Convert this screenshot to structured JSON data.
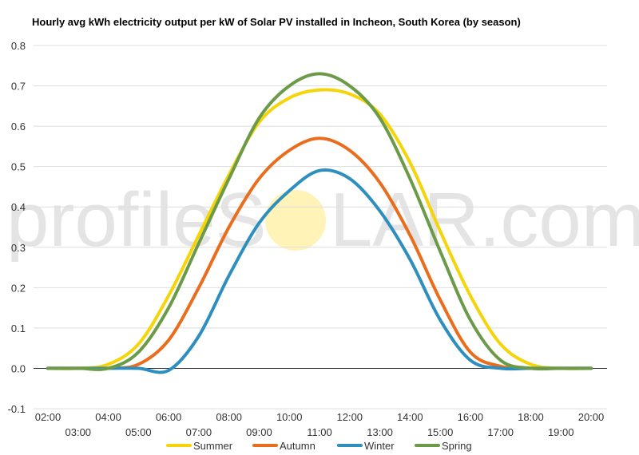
{
  "chart_data": {
    "type": "line",
    "title": "Hourly avg kWh electricity output per kW of Solar PV installed in Incheon, South Korea (by season)",
    "x": [
      "02:00",
      "03:00",
      "04:00",
      "05:00",
      "06:00",
      "07:00",
      "08:00",
      "09:00",
      "10:00",
      "11:00",
      "12:00",
      "13:00",
      "14:00",
      "15:00",
      "16:00",
      "17:00",
      "18:00",
      "19:00",
      "20:00"
    ],
    "ylim": [
      -0.1,
      0.8
    ],
    "yticks": [
      "0.8",
      "0.7",
      "0.6",
      "0.5",
      "0.4",
      "0.3",
      "0.2",
      "0.1",
      "0.0",
      "-0.1"
    ],
    "grid": true,
    "legend_position": "bottom",
    "series": [
      {
        "name": "Summer",
        "color": "#f6d40a",
        "values": [
          0,
          0,
          0.01,
          0.06,
          0.18,
          0.33,
          0.48,
          0.61,
          0.67,
          0.69,
          0.68,
          0.63,
          0.51,
          0.34,
          0.18,
          0.06,
          0.01,
          0,
          0
        ]
      },
      {
        "name": "Autumn",
        "color": "#ea6d1e",
        "values": [
          0,
          0,
          0,
          0.01,
          0.07,
          0.2,
          0.35,
          0.47,
          0.54,
          0.57,
          0.54,
          0.46,
          0.33,
          0.17,
          0.04,
          0.005,
          0,
          0,
          0
        ]
      },
      {
        "name": "Winter",
        "color": "#2e8fbf",
        "values": [
          0,
          0,
          0,
          0,
          -0.005,
          0.08,
          0.23,
          0.36,
          0.44,
          0.49,
          0.47,
          0.39,
          0.27,
          0.12,
          0.02,
          0,
          0,
          0,
          0
        ]
      },
      {
        "name": "Spring",
        "color": "#6b9a48",
        "values": [
          0,
          0,
          0,
          0.04,
          0.15,
          0.31,
          0.47,
          0.62,
          0.7,
          0.73,
          0.7,
          0.62,
          0.47,
          0.29,
          0.12,
          0.02,
          0,
          0,
          0
        ]
      }
    ]
  },
  "watermark": {
    "before": "profileS",
    "after": "LAR.com",
    "sun_color": "#fff3b8"
  }
}
